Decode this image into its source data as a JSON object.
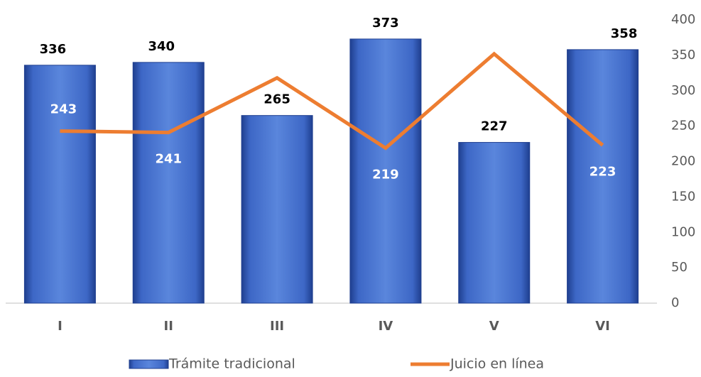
{
  "chart_data": {
    "type": "bar-line",
    "categories": [
      "I",
      "II",
      "III",
      "IV",
      "V",
      "VI"
    ],
    "series": [
      {
        "name": "Trámite tradicional",
        "type": "bar",
        "color": "#4472c4",
        "values": [
          336,
          340,
          265,
          373,
          227,
          358
        ]
      },
      {
        "name": "Juicio en línea",
        "type": "line",
        "color": "#ed7d31",
        "values": [
          243,
          241,
          318,
          219,
          352,
          223
        ],
        "value_labels": [
          "243",
          "241",
          null,
          "219",
          null,
          "223"
        ]
      }
    ],
    "ylim": [
      0,
      400
    ],
    "yticks": [
      0,
      50,
      100,
      150,
      200,
      250,
      300,
      350,
      400
    ],
    "yaxis_side": "right",
    "legend": "bottom"
  }
}
